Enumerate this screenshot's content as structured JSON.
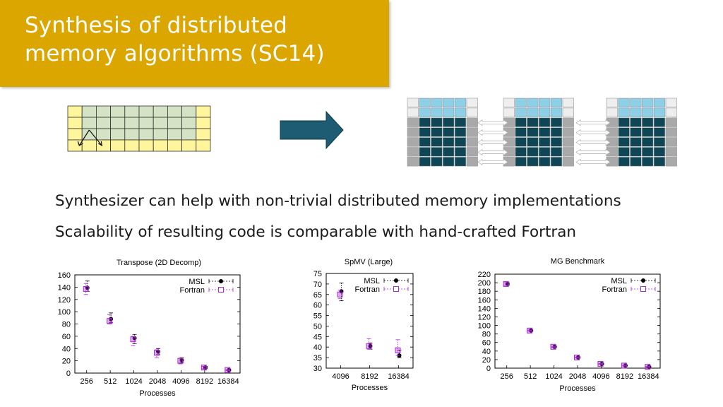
{
  "slide": {
    "title": "Synthesis of distributed\nmemory algorithms (SC14)",
    "bullets": [
      "Synthesizer can help with non-trivial distributed memory implementations",
      "Scalability of resulting code is comparable with hand-crafted Fortran"
    ]
  },
  "colors": {
    "title_bg": "#dca600",
    "grid_yellow": "#fff59d",
    "grid_green": "#d3e3c3",
    "arrow_fill": "#1e5c73",
    "cell_dark": "#0e4656",
    "cell_light_blue": "#8ccfe6",
    "cell_gray": "#a9a9a9",
    "cell_light": "#eeeeee",
    "msl_marker": "#000000",
    "fortran_marker": "#aa2ad4"
  },
  "icons": {
    "flow_arrow": "right-arrow-icon",
    "exchange_arrows": "double-arrow-icon"
  },
  "chart_data": [
    {
      "type": "scatter",
      "title": "Transpose (2D Decomp)",
      "xlabel": "Processes",
      "ylabel": "",
      "categories": [
        "256",
        "512",
        "1024",
        "2048",
        "4096",
        "8192",
        "16384"
      ],
      "ylim": [
        0,
        160
      ],
      "yticks": [
        0,
        20,
        40,
        60,
        80,
        100,
        120,
        140,
        160
      ],
      "legend": "top-right",
      "series": [
        {
          "name": "MSL",
          "marker": "circle",
          "values": [
            139,
            88,
            57,
            35,
            21,
            9,
            5
          ],
          "err_low": [
            133,
            82,
            48,
            30,
            17,
            7,
            4
          ],
          "err_high": [
            150,
            98,
            63,
            40,
            25,
            11,
            6
          ]
        },
        {
          "name": "Fortran",
          "marker": "square",
          "values": [
            137,
            85,
            55,
            33,
            20,
            9,
            5
          ],
          "err_low": [
            128,
            80,
            45,
            25,
            15,
            7,
            4
          ],
          "err_high": [
            146,
            95,
            60,
            38,
            24,
            11,
            6
          ]
        }
      ]
    },
    {
      "type": "scatter",
      "title": "SpMV (Large)",
      "xlabel": "Processes",
      "ylabel": "",
      "categories": [
        "4096",
        "8192",
        "16384"
      ],
      "ylim": [
        30,
        75
      ],
      "yticks": [
        30,
        35,
        40,
        45,
        50,
        55,
        60,
        65,
        70,
        75
      ],
      "legend": "top-right",
      "series": [
        {
          "name": "MSL",
          "marker": "circle",
          "values": [
            66.5,
            40.5,
            36
          ],
          "err_low": [
            62,
            39,
            35
          ],
          "err_high": [
            70.5,
            42,
            38.5
          ]
        },
        {
          "name": "Fortran",
          "marker": "square",
          "values": [
            65,
            40.5,
            38.5
          ],
          "err_low": [
            63,
            39,
            36
          ],
          "err_high": [
            67,
            44,
            43.5
          ]
        }
      ]
    },
    {
      "type": "scatter",
      "title": "MG Benchmark",
      "xlabel": "Processes",
      "ylabel": "",
      "categories": [
        "256",
        "512",
        "1024",
        "2048",
        "4096",
        "8192",
        "16384"
      ],
      "ylim": [
        0,
        220
      ],
      "yticks": [
        0,
        20,
        40,
        60,
        80,
        100,
        120,
        140,
        160,
        180,
        200,
        220
      ],
      "legend": "top-right",
      "series": [
        {
          "name": "MSL",
          "marker": "circle",
          "values": [
            197,
            88,
            50,
            25,
            10,
            6,
            3
          ],
          "err_low": [
            194,
            87,
            49,
            24,
            9,
            5,
            2
          ],
          "err_high": [
            200,
            89,
            51,
            26,
            11,
            7,
            4
          ]
        },
        {
          "name": "Fortran",
          "marker": "square",
          "values": [
            197,
            88,
            50,
            25,
            10,
            6,
            3
          ],
          "err_low": [
            194,
            87,
            49,
            24,
            9,
            5,
            2
          ],
          "err_high": [
            200,
            89,
            51,
            26,
            11,
            7,
            4
          ]
        }
      ]
    }
  ]
}
